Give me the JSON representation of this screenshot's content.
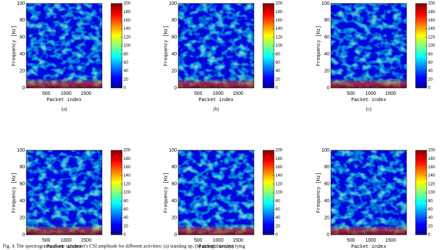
{
  "chart_data": [
    {
      "type": "heatmap",
      "panel_label": "(a)",
      "ylabel": "Frequency [Hz]",
      "xlabel": "Packet index",
      "xlim": [
        0,
        1900
      ],
      "xticks": [
        500,
        1000,
        1500
      ],
      "ylim": [
        0,
        100
      ],
      "yticks": [
        0,
        20,
        40,
        60,
        80,
        100
      ],
      "clim": [
        0,
        200
      ],
      "cticks": [
        0,
        20,
        40,
        60,
        80,
        100,
        120,
        140,
        160,
        180,
        200
      ]
    },
    {
      "type": "heatmap",
      "panel_label": "(b)",
      "ylabel": "Frequency [Hz]",
      "xlabel": "Packet index",
      "xlim": [
        0,
        1900
      ],
      "xticks": [
        500,
        1000,
        1500
      ],
      "ylim": [
        0,
        100
      ],
      "yticks": [
        0,
        20,
        40,
        60,
        80,
        100
      ],
      "clim": [
        0,
        200
      ],
      "cticks": [
        0,
        20,
        40,
        60,
        80,
        100,
        120,
        140,
        160,
        180,
        200
      ]
    },
    {
      "type": "heatmap",
      "panel_label": "(c)",
      "ylabel": "Frequency [Hz]",
      "xlabel": "Packet index",
      "xlim": [
        0,
        1900
      ],
      "xticks": [
        500,
        1000,
        1500
      ],
      "ylim": [
        0,
        100
      ],
      "yticks": [
        0,
        20,
        40,
        60,
        80,
        100
      ],
      "clim": [
        0,
        200
      ],
      "cticks": [
        0,
        20,
        40,
        60,
        80,
        100,
        120,
        140,
        160,
        180,
        200
      ]
    },
    {
      "type": "heatmap",
      "ylabel": "Frequency [Hz]",
      "xlabel": "Packet index",
      "xlim": [
        0,
        1900
      ],
      "xticks": [
        500,
        1000,
        1500
      ],
      "ylim": [
        0,
        100
      ],
      "yticks": [
        0,
        20,
        40,
        60,
        80,
        100
      ],
      "clim": [
        0,
        200
      ],
      "cticks": [
        0,
        20,
        40,
        60,
        80,
        100,
        120,
        140,
        160,
        180,
        200
      ]
    },
    {
      "type": "heatmap",
      "ylabel": "Frequency [Hz]",
      "xlabel": "Packet index",
      "xlim": [
        0,
        1900
      ],
      "xticks": [
        500,
        1000,
        1500
      ],
      "ylim": [
        0,
        100
      ],
      "yticks": [
        0,
        20,
        40,
        60,
        80,
        100
      ],
      "clim": [
        0,
        200
      ],
      "cticks": [
        0,
        20,
        40,
        60,
        80,
        100,
        120,
        140,
        160,
        180,
        200
      ]
    },
    {
      "type": "heatmap",
      "ylabel": "Frequency [Hz]",
      "xlabel": "Packet index",
      "xlim": [
        0,
        1900
      ],
      "xticks": [
        500,
        1000,
        1500
      ],
      "ylim": [
        0,
        100
      ],
      "yticks": [
        0,
        20,
        40,
        60,
        80,
        100
      ],
      "clim": [
        0,
        200
      ],
      "cticks": [
        0,
        20,
        40,
        60,
        80,
        100,
        120,
        140,
        160,
        180,
        200
      ]
    }
  ],
  "caption": "Fig. 4.  The spectrograms of one subcarrier's CSI amplitude for different activities: (a) standing up, (b) sitting down, (c) lying"
}
